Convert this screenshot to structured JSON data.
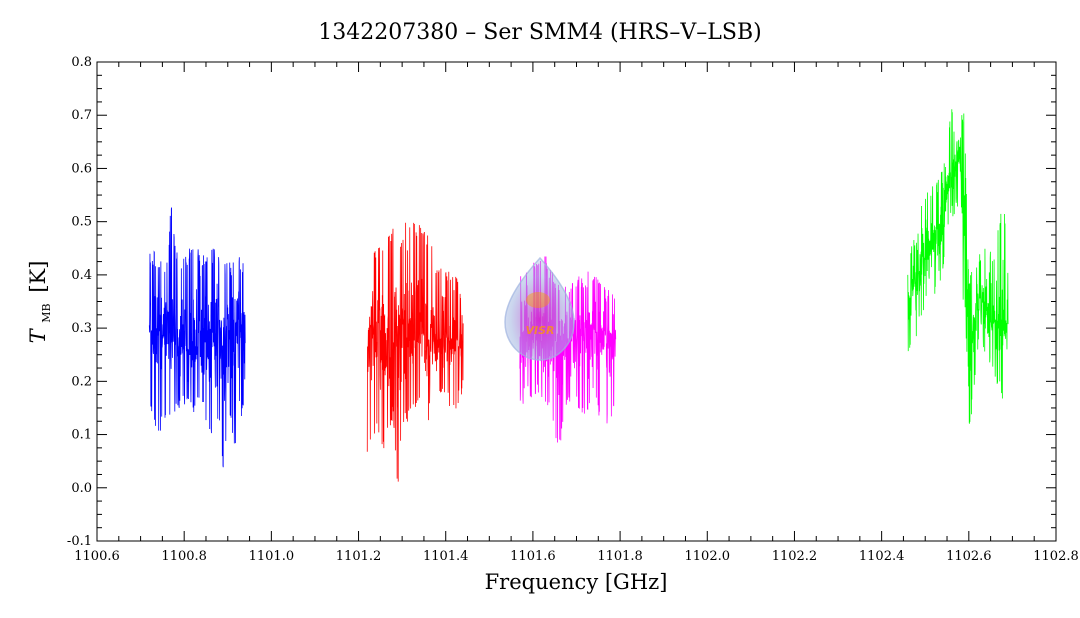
{
  "chart_data": {
    "type": "line",
    "title": "1342207380 – Ser SMM4 (HRS–V–LSB)",
    "xlabel": "Frequency [GHz]",
    "ylabel": {
      "main": "T",
      "sub": "MB",
      "unit": "[K]"
    },
    "xlim": [
      1100.6,
      1102.8
    ],
    "ylim": [
      -0.1,
      0.8
    ],
    "x_ticks": [
      "1100.6",
      "1100.8",
      "1101.0",
      "1101.2",
      "1101.4",
      "1101.6",
      "1101.8",
      "1102.0",
      "1102.2",
      "1102.4",
      "1102.6",
      "1102.8"
    ],
    "y_ticks": [
      "-0.1",
      "0.0",
      "0.1",
      "0.2",
      "0.3",
      "0.4",
      "0.5",
      "0.6",
      "0.7",
      "0.8"
    ],
    "grid": false,
    "legend": "none",
    "series": [
      {
        "color": "#0000ff",
        "x": [
          1100.72,
          1100.74,
          1100.76,
          1100.77,
          1100.78,
          1100.8,
          1100.82,
          1100.84,
          1100.86,
          1100.88,
          1100.89,
          1100.9,
          1100.92,
          1100.94
        ],
        "high": [
          0.45,
          0.44,
          0.42,
          0.54,
          0.46,
          0.43,
          0.47,
          0.44,
          0.45,
          0.45,
          0.43,
          0.42,
          0.44,
          0.42
        ],
        "low": [
          0.14,
          0.08,
          0.14,
          0.12,
          0.14,
          0.15,
          0.13,
          0.15,
          0.1,
          0.12,
          0.03,
          0.13,
          0.06,
          0.18
        ],
        "level": 0.28
      },
      {
        "color": "#ff0000",
        "x": [
          1101.22,
          1101.24,
          1101.26,
          1101.28,
          1101.29,
          1101.3,
          1101.31,
          1101.32,
          1101.34,
          1101.36,
          1101.38,
          1101.4,
          1101.42,
          1101.44
        ],
        "high": [
          0.38,
          0.46,
          0.46,
          0.5,
          0.45,
          0.47,
          0.54,
          0.5,
          0.5,
          0.48,
          0.42,
          0.42,
          0.4,
          0.38
        ],
        "low": [
          0.06,
          0.1,
          0.07,
          0.13,
          -0.02,
          0.12,
          0.12,
          0.14,
          0.16,
          0.12,
          0.18,
          0.16,
          0.14,
          0.18
        ],
        "level": 0.28
      },
      {
        "color": "#ff00ff",
        "x": [
          1101.57,
          1101.59,
          1101.61,
          1101.62,
          1101.64,
          1101.66,
          1101.68,
          1101.7,
          1101.72,
          1101.74,
          1101.76,
          1101.78,
          1101.79
        ],
        "high": [
          0.4,
          0.41,
          0.44,
          0.46,
          0.41,
          0.4,
          0.39,
          0.4,
          0.4,
          0.42,
          0.38,
          0.37,
          0.36
        ],
        "low": [
          0.15,
          0.17,
          0.17,
          0.17,
          0.14,
          0.06,
          0.16,
          0.15,
          0.12,
          0.17,
          0.11,
          0.12,
          0.16
        ],
        "level": 0.28
      },
      {
        "color": "#00ff00",
        "x": [
          1102.46,
          1102.48,
          1102.5,
          1102.52,
          1102.54,
          1102.55,
          1102.56,
          1102.57,
          1102.58,
          1102.59,
          1102.6,
          1102.62,
          1102.64,
          1102.66,
          1102.68,
          1102.69
        ],
        "high": [
          0.44,
          0.49,
          0.56,
          0.57,
          0.6,
          0.64,
          0.72,
          0.7,
          0.74,
          0.7,
          0.39,
          0.44,
          0.46,
          0.45,
          0.55,
          0.42
        ],
        "low": [
          0.23,
          0.28,
          0.33,
          0.35,
          0.4,
          0.45,
          0.5,
          0.52,
          0.5,
          0.12,
          0.09,
          0.25,
          0.25,
          0.2,
          0.16,
          0.14
        ],
        "level": [
          0.35,
          0.4,
          0.44,
          0.46,
          0.5,
          0.55,
          0.6,
          0.62,
          0.63,
          0.4,
          0.22,
          0.36,
          0.33,
          0.3,
          0.3,
          0.32
        ]
      }
    ],
    "watermark": {
      "text": "VISR",
      "colors": [
        "#a0b4e0",
        "#cc33cc",
        "#ff9900"
      ]
    }
  }
}
